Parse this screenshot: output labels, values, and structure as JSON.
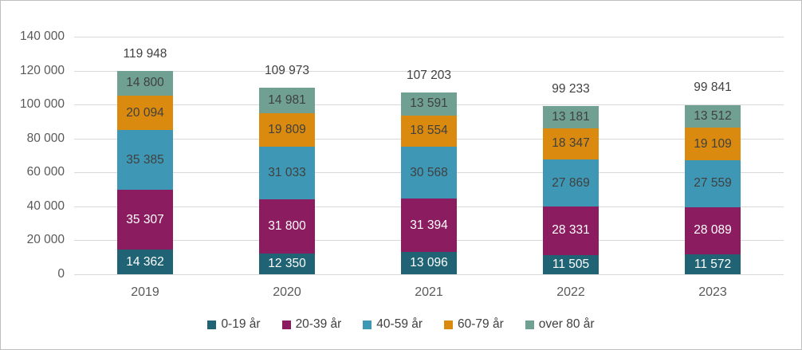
{
  "chart_data": {
    "type": "bar",
    "stacked": true,
    "title": "",
    "xlabel": "",
    "ylabel": "",
    "categories": [
      "2019",
      "2020",
      "2021",
      "2022",
      "2023"
    ],
    "series": [
      {
        "name": "0-19 år",
        "color": "#1f6374",
        "label_color": "#ffffff",
        "values": [
          14362,
          12350,
          13096,
          11505,
          11572
        ],
        "labels": [
          "14 362",
          "12 350",
          "13 096",
          "11 505",
          "11 572"
        ]
      },
      {
        "name": "20-39 år",
        "color": "#8c1c60",
        "label_color": "#ffffff",
        "values": [
          35307,
          31800,
          31394,
          28331,
          28089
        ],
        "labels": [
          "35 307",
          "31 800",
          "31 394",
          "28 331",
          "28 089"
        ]
      },
      {
        "name": "40-59 år",
        "color": "#3e98b5",
        "label_color": "#404040",
        "values": [
          35385,
          31033,
          30568,
          27869,
          27559
        ],
        "labels": [
          "35 385",
          "31 033",
          "30 568",
          "27 869",
          "27 559"
        ]
      },
      {
        "name": "60-79 år",
        "color": "#da8a0e",
        "label_color": "#404040",
        "values": [
          20094,
          19809,
          18554,
          18347,
          19109
        ],
        "labels": [
          "20 094",
          "19 809",
          "18 554",
          "18 347",
          "19 109"
        ]
      },
      {
        "name": "over 80 år",
        "color": "#6fa091",
        "label_color": "#404040",
        "values": [
          14800,
          14981,
          13591,
          13181,
          13512
        ],
        "labels": [
          "14 800",
          "14 981",
          "13 591",
          "13 181",
          "13 512"
        ]
      }
    ],
    "totals": [
      119948,
      109973,
      107203,
      99233,
      99841
    ],
    "total_labels": [
      "119 948",
      "109 973",
      "107 203",
      "99 233",
      "99 841"
    ],
    "ylim": [
      0,
      140000
    ],
    "ytick_values": [
      0,
      20000,
      40000,
      60000,
      80000,
      100000,
      120000,
      140000
    ],
    "ytick_labels": [
      "0",
      "20 000",
      "40 000",
      "60 000",
      "80 000",
      "100 000",
      "120 000",
      "140 000"
    ],
    "grid": true,
    "legend_position": "bottom",
    "colors": {
      "gridline": "#d9d9d9",
      "tick_text": "#595959",
      "total_text": "#404040",
      "legend_text": "#404040",
      "frame_border": "#bfbfbf"
    }
  }
}
